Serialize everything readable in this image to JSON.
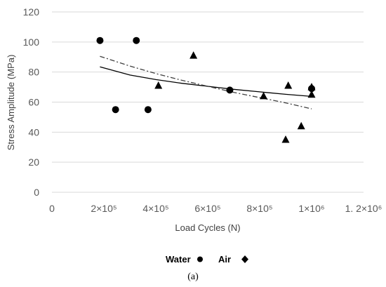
{
  "chart_data": {
    "type": "scatter",
    "ylabel": "Stress Amplitude   (MPa)",
    "xlabel": "Load Cycles (N)",
    "xlim": [
      0,
      1200000
    ],
    "ylim": [
      0,
      120
    ],
    "x_ticks": [
      0,
      200000,
      400000,
      600000,
      800000,
      1000000,
      1200000
    ],
    "x_tick_labels": [
      "0",
      "2×10⁵",
      "4×10⁵",
      "6×10⁵",
      "8×10⁵",
      "1×10⁶",
      "1. 2×10⁶"
    ],
    "y_ticks": [
      0,
      20,
      40,
      60,
      80,
      100,
      120
    ],
    "y_tick_labels": [
      "0",
      "20",
      "40",
      "60",
      "80",
      "100",
      "120"
    ],
    "grid": "horizontal",
    "legend_position": "bottom",
    "series": [
      {
        "name": "Water",
        "marker": "circle",
        "color": "#000000",
        "points": [
          {
            "x": 185000,
            "y": 101
          },
          {
            "x": 245000,
            "y": 55
          },
          {
            "x": 325000,
            "y": 101
          },
          {
            "x": 370000,
            "y": 55
          },
          {
            "x": 685000,
            "y": 68
          },
          {
            "x": 1000000,
            "y": 69
          }
        ],
        "trendline": {
          "style": "solid",
          "color": "#000000",
          "points": [
            {
              "x": 185000,
              "y": 83.5
            },
            {
              "x": 300000,
              "y": 78
            },
            {
              "x": 400000,
              "y": 75
            },
            {
              "x": 500000,
              "y": 72.5
            },
            {
              "x": 600000,
              "y": 70.5
            },
            {
              "x": 700000,
              "y": 68.5
            },
            {
              "x": 800000,
              "y": 66.8
            },
            {
              "x": 900000,
              "y": 65.2
            },
            {
              "x": 1000000,
              "y": 63.8
            }
          ]
        }
      },
      {
        "name": "Air",
        "marker": "triangle",
        "color": "#000000",
        "points": [
          {
            "x": 410000,
            "y": 71
          },
          {
            "x": 545000,
            "y": 91
          },
          {
            "x": 815000,
            "y": 64
          },
          {
            "x": 900000,
            "y": 35
          },
          {
            "x": 910000,
            "y": 71
          },
          {
            "x": 960000,
            "y": 44
          },
          {
            "x": 1000000,
            "y": 70
          },
          {
            "x": 1000000,
            "y": 65
          }
        ],
        "trendline": {
          "style": "dashdot",
          "color": "#404040",
          "points": [
            {
              "x": 185000,
              "y": 90.5
            },
            {
              "x": 300000,
              "y": 84
            },
            {
              "x": 400000,
              "y": 79
            },
            {
              "x": 500000,
              "y": 74.5
            },
            {
              "x": 600000,
              "y": 70.5
            },
            {
              "x": 700000,
              "y": 66.5
            },
            {
              "x": 800000,
              "y": 63
            },
            {
              "x": 900000,
              "y": 59.5
            },
            {
              "x": 1000000,
              "y": 55.5
            }
          ]
        }
      }
    ]
  },
  "legend": {
    "water_label": "Water",
    "air_label": "Air"
  },
  "caption": "(a)"
}
